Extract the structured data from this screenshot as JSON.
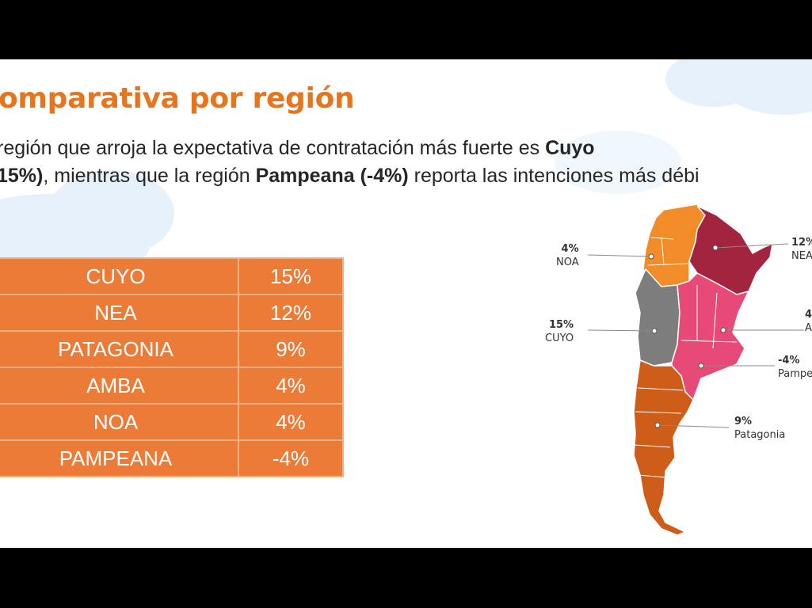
{
  "title": "omparativa por región",
  "subtitle": {
    "line1_text": "región que arroja la expectativa de contratación más fuerte es ",
    "line1_bold": "Cuyo",
    "line2_bold_a": "15%)",
    "line2_text_a": ", mientras que la región ",
    "line2_bold_b": "Pampeana (-4%)",
    "line2_text_b": " reporta las intenciones más débi"
  },
  "table": {
    "rows": [
      {
        "region": "CUYO",
        "value": "15%"
      },
      {
        "region": "NEA",
        "value": "12%"
      },
      {
        "region": "PATAGONIA",
        "value": "9%"
      },
      {
        "region": "AMBA",
        "value": "4%"
      },
      {
        "region": "NOA",
        "value": "4%"
      },
      {
        "region": "PAMPEANA",
        "value": "-4%"
      }
    ]
  },
  "map_labels": {
    "noa": {
      "value": "4%",
      "name": "NOA"
    },
    "nea": {
      "value": "12%",
      "name": "NEA"
    },
    "cuyo": {
      "value": "15%",
      "name": "CUYO"
    },
    "amba": {
      "value": "4",
      "name": "A"
    },
    "pampeana": {
      "value": "-4%",
      "name": "Pampe"
    },
    "patagonia": {
      "value": "9%",
      "name": "Patagonia"
    }
  },
  "colors": {
    "title": "#e5761f",
    "table_fill": "#ec7b38",
    "noa": "#f28c28",
    "nea": "#a3243e",
    "cuyo": "#7d7d7d",
    "pampeana": "#e84a78",
    "patagonia": "#cf5d1a"
  }
}
